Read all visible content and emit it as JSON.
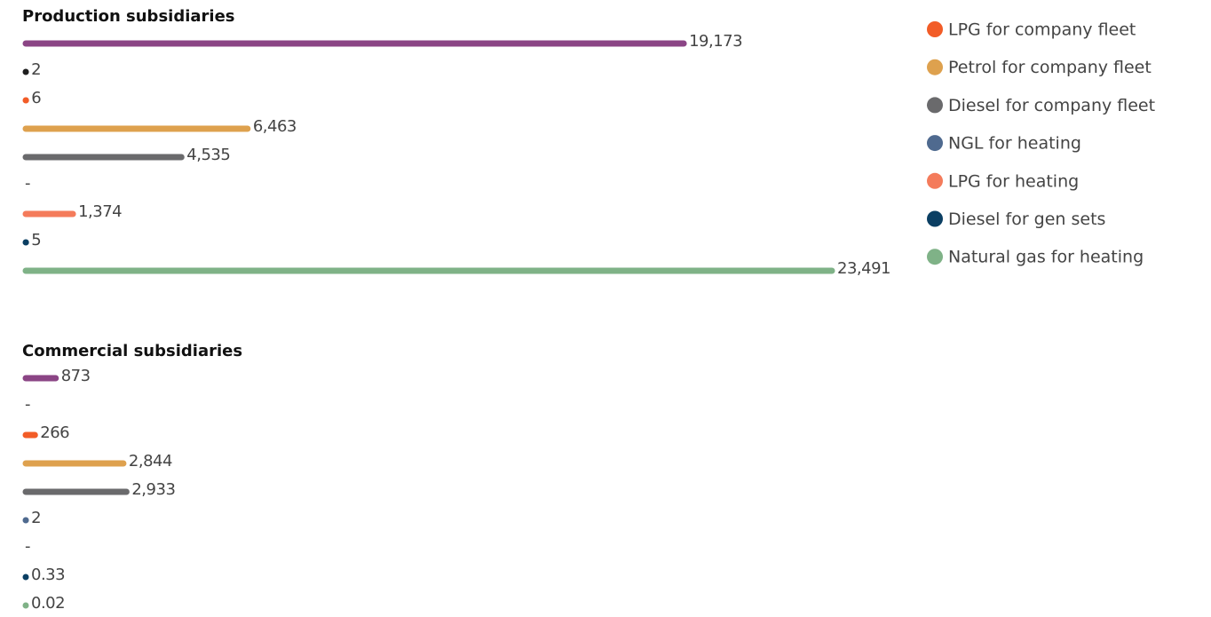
{
  "chart_data": {
    "type": "bar",
    "orientation": "horizontal",
    "categories": [
      "Production subsidiaries",
      "Commercial subsidiaries"
    ],
    "series": [
      {
        "color": "#8b4585",
        "values": [
          19173,
          873
        ],
        "value_labels": [
          "19,173",
          "873"
        ]
      },
      {
        "color": "#1e1e1e",
        "values": [
          2,
          null
        ],
        "value_labels": [
          "2",
          "-"
        ]
      },
      {
        "name": "LPG for company fleet",
        "color": "#f25c27",
        "values": [
          6,
          266
        ],
        "value_labels": [
          "6",
          "266"
        ]
      },
      {
        "name": "Petrol for company fleet",
        "color": "#dea14e",
        "values": [
          6463,
          2844
        ],
        "value_labels": [
          "6,463",
          "2,844"
        ]
      },
      {
        "name": "Diesel for company fleet",
        "color": "#6a6a6c",
        "values": [
          4535,
          2933
        ],
        "value_labels": [
          "4,535",
          "2,933"
        ]
      },
      {
        "name": "NGL for heating",
        "color": "#4f6a8f",
        "values": [
          null,
          2
        ],
        "value_labels": [
          "-",
          "2"
        ]
      },
      {
        "name": "LPG for heating",
        "color": "#f47b5b",
        "values": [
          1374,
          null
        ],
        "value_labels": [
          "1,374",
          "-"
        ]
      },
      {
        "name": "Diesel for gen sets",
        "color": "#0b3f63",
        "values": [
          5,
          0.33
        ],
        "value_labels": [
          "5",
          "0.33"
        ]
      },
      {
        "name": "Natural gas for heating",
        "color": "#7fb287",
        "values": [
          23491,
          0.02
        ],
        "value_labels": [
          "23,491",
          "0.02"
        ]
      }
    ]
  }
}
